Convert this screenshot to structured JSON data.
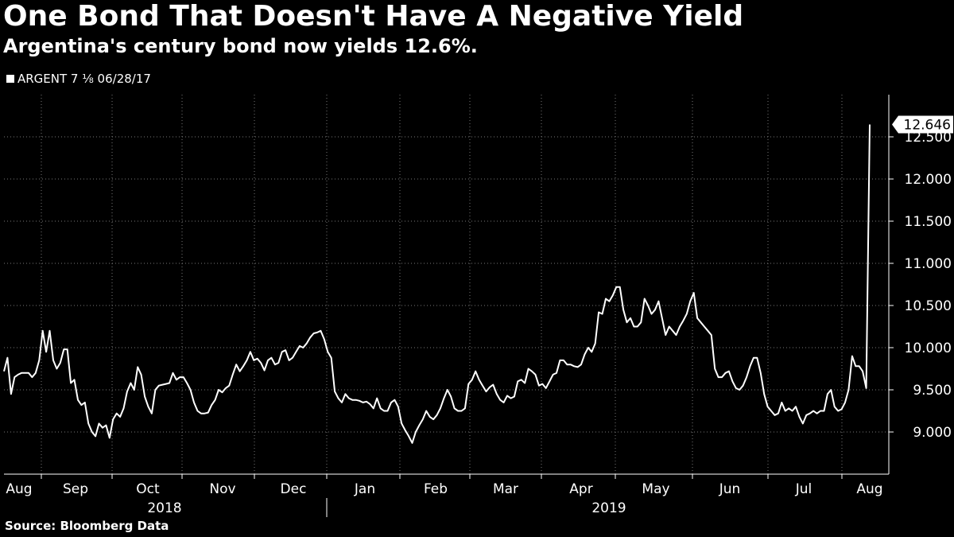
{
  "title": "One Bond That Doesn't Have A Negative Yield",
  "subtitle": "Argentina's century bond now yields 12.6%.",
  "source": "Source: Bloomberg Data",
  "chart_data": {
    "type": "line",
    "series": [
      {
        "name": "ARGENT 7 ⅛ 06/28/17",
        "color": "#ffffff",
        "values": [
          9.72,
          9.88,
          9.45,
          9.65,
          9.68,
          9.7,
          9.7,
          9.7,
          9.65,
          9.7,
          9.85,
          10.2,
          9.95,
          10.2,
          9.85,
          9.75,
          9.82,
          9.98,
          9.98,
          9.58,
          9.62,
          9.38,
          9.32,
          9.35,
          9.1,
          9.0,
          8.95,
          9.1,
          9.05,
          9.08,
          8.93,
          9.15,
          9.22,
          9.18,
          9.28,
          9.48,
          9.58,
          9.5,
          9.77,
          9.68,
          9.42,
          9.3,
          9.22,
          9.5,
          9.55,
          9.56,
          9.57,
          9.58,
          9.7,
          9.62,
          9.65,
          9.65,
          9.58,
          9.5,
          9.35,
          9.25,
          9.22,
          9.22,
          9.23,
          9.32,
          9.38,
          9.5,
          9.47,
          9.52,
          9.55,
          9.68,
          9.8,
          9.72,
          9.78,
          9.85,
          9.95,
          9.85,
          9.87,
          9.82,
          9.73,
          9.85,
          9.88,
          9.8,
          9.82,
          9.95,
          9.97,
          9.85,
          9.88,
          9.95,
          10.02,
          10.0,
          10.05,
          10.12,
          10.17,
          10.18,
          10.2,
          10.1,
          9.95,
          9.88,
          9.48,
          9.4,
          9.35,
          9.45,
          9.4,
          9.38,
          9.38,
          9.37,
          9.35,
          9.36,
          9.33,
          9.28,
          9.4,
          9.28,
          9.25,
          9.25,
          9.35,
          9.38,
          9.3,
          9.1,
          9.02,
          8.95,
          8.87,
          9.0,
          9.08,
          9.15,
          9.25,
          9.18,
          9.15,
          9.2,
          9.28,
          9.4,
          9.5,
          9.42,
          9.28,
          9.25,
          9.25,
          9.28,
          9.57,
          9.62,
          9.72,
          9.62,
          9.55,
          9.48,
          9.53,
          9.56,
          9.45,
          9.38,
          9.35,
          9.43,
          9.4,
          9.42,
          9.6,
          9.62,
          9.58,
          9.75,
          9.72,
          9.68,
          9.55,
          9.57,
          9.52,
          9.6,
          9.68,
          9.7,
          9.85,
          9.85,
          9.8,
          9.8,
          9.78,
          9.77,
          9.8,
          9.92,
          10.0,
          9.95,
          10.05,
          10.42,
          10.4,
          10.58,
          10.55,
          10.62,
          10.72,
          10.72,
          10.45,
          10.3,
          10.35,
          10.25,
          10.25,
          10.3,
          10.58,
          10.5,
          10.4,
          10.45,
          10.55,
          10.35,
          10.15,
          10.25,
          10.2,
          10.15,
          10.25,
          10.32,
          10.4,
          10.55,
          10.65,
          10.35,
          10.3,
          10.25,
          10.2,
          10.15,
          9.75,
          9.65,
          9.65,
          9.7,
          9.72,
          9.6,
          9.52,
          9.5,
          9.55,
          9.65,
          9.78,
          9.88,
          9.88,
          9.7,
          9.45,
          9.3,
          9.25,
          9.2,
          9.22,
          9.35,
          9.25,
          9.28,
          9.25,
          9.3,
          9.18,
          9.1,
          9.2,
          9.22,
          9.25,
          9.22,
          9.25,
          9.25,
          9.45,
          9.5,
          9.3,
          9.25,
          9.27,
          9.35,
          9.5,
          9.9,
          9.78,
          9.78,
          9.72,
          9.52,
          12.646
        ]
      }
    ],
    "last_value_label": "12.646",
    "y_ticks": [
      9.0,
      9.5,
      10.0,
      10.5,
      11.0,
      11.5,
      12.0,
      12.5
    ],
    "y_tick_labels": [
      "9.000",
      "9.500",
      "10.000",
      "10.500",
      "11.000",
      "11.500",
      "12.000",
      "12.500"
    ],
    "ylim": [
      8.5,
      13.0
    ],
    "x_month_labels": [
      "Aug",
      "Sep",
      "Oct",
      "Nov",
      "Dec",
      "Jan",
      "Feb",
      "Mar",
      "Apr",
      "May",
      "Jun",
      "Jul",
      "Aug"
    ],
    "x_year_labels": [
      "2018",
      "2019"
    ],
    "xlabel": "",
    "ylabel": "",
    "grid": true,
    "legend_position": "top-left"
  }
}
